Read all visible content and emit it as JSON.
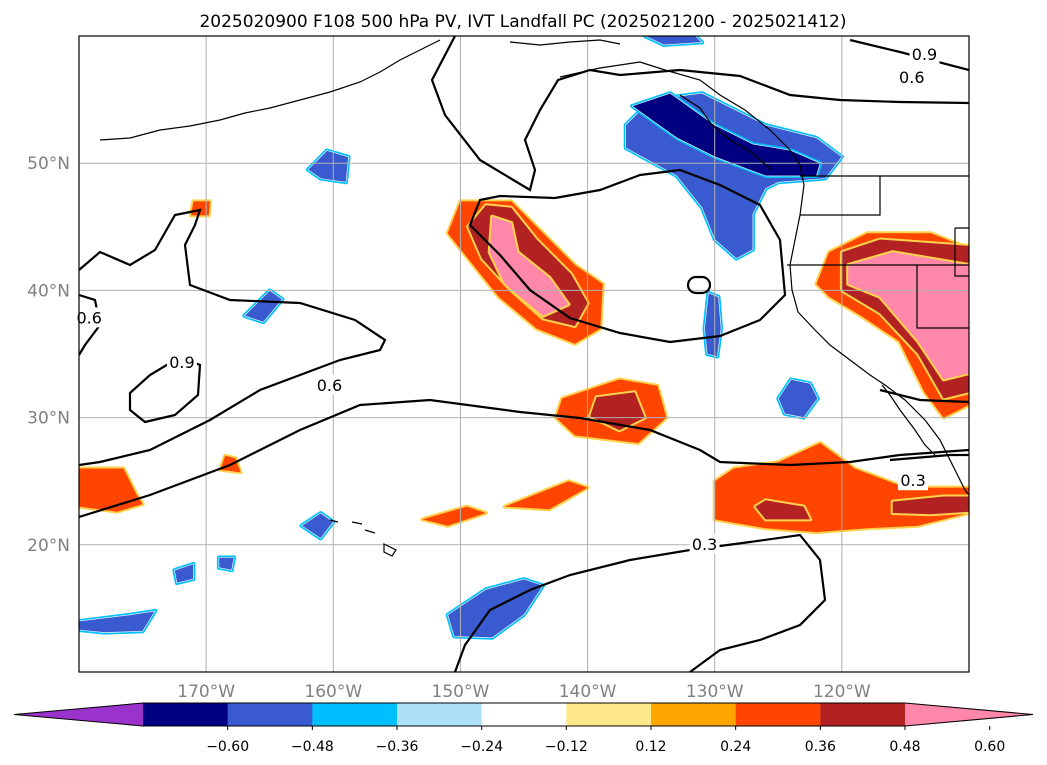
{
  "chart_data": {
    "type": "heatmap",
    "title": "2025020900 F108 500 hPa PV, IVT Landfall PC (2025021200 - 2025021412)",
    "xlabel": "",
    "ylabel": "",
    "xlim": [
      -180,
      -110
    ],
    "ylim": [
      10,
      60
    ],
    "grid": true,
    "x_ticks": [
      {
        "value": -170,
        "label": "170°W"
      },
      {
        "value": -160,
        "label": "160°W"
      },
      {
        "value": -150,
        "label": "150°W"
      },
      {
        "value": -140,
        "label": "140°W"
      },
      {
        "value": -130,
        "label": "130°W"
      },
      {
        "value": -120,
        "label": "120°W"
      }
    ],
    "y_ticks": [
      {
        "value": 20,
        "label": "20°N"
      },
      {
        "value": 30,
        "label": "30°N"
      },
      {
        "value": 40,
        "label": "40°N"
      },
      {
        "value": 50,
        "label": "50°N"
      }
    ],
    "colorbar": {
      "orientation": "horizontal",
      "extend": "both",
      "ticks": [
        "−0.60",
        "−0.48",
        "−0.36",
        "−0.24",
        "−0.12",
        "0.12",
        "0.24",
        "0.36",
        "0.48",
        "0.60"
      ],
      "colors": [
        "#9933cc",
        "#000080",
        "#3a5bd0",
        "#00bfff",
        "#aee0fa",
        "#ffffff",
        "#ffe88a",
        "#ffa500",
        "#ff4500",
        "#b22222",
        "#ff88aa"
      ]
    },
    "contour_labels": [
      {
        "text": "0.9",
        "lon": -113.5,
        "lat": 58.5
      },
      {
        "text": "0.6",
        "lon": -114.5,
        "lat": 56.7
      },
      {
        "text": "0.6",
        "lon": -179.2,
        "lat": 37.8
      },
      {
        "text": "0.9",
        "lon": -171.9,
        "lat": 34.3
      },
      {
        "text": "0.6",
        "lon": -160.3,
        "lat": 32.5
      },
      {
        "text": "0.3",
        "lon": -114.4,
        "lat": 25.0
      },
      {
        "text": "0.3",
        "lon": -130.8,
        "lat": 20.0
      }
    ],
    "filled_regions": [
      {
        "name": "pv-gulf-of-alaska-low",
        "value_class": -0.36,
        "polygon": [
          [
            -137,
            53
          ],
          [
            -135,
            55
          ],
          [
            -131,
            55.5
          ],
          [
            -126,
            53
          ],
          [
            -122,
            52
          ],
          [
            -120,
            50.5
          ],
          [
            -121.3,
            48.8
          ],
          [
            -125,
            48.5
          ],
          [
            -126,
            48
          ],
          [
            -127,
            46
          ],
          [
            -127,
            43.2
          ],
          [
            -128.3,
            42.5
          ],
          [
            -130,
            44
          ],
          [
            -131,
            46.5
          ],
          [
            -133,
            49
          ],
          [
            -137,
            51.2
          ]
        ]
      },
      {
        "name": "pv-gulf-of-alaska-core",
        "value_class": -0.48,
        "polygon": [
          [
            -136.5,
            54.5
          ],
          [
            -133.5,
            55.5
          ],
          [
            -130,
            53
          ],
          [
            -127,
            51.5
          ],
          [
            -124,
            51
          ],
          [
            -121.7,
            50
          ],
          [
            -122,
            49
          ],
          [
            -126,
            49
          ],
          [
            -130,
            50.5
          ],
          [
            -133,
            52
          ]
        ]
      },
      {
        "name": "pv-north-edge",
        "value_class": -0.36,
        "polygon": [
          [
            -135.5,
            60
          ],
          [
            -134,
            59.3
          ],
          [
            -131,
            59.5
          ],
          [
            -131.5,
            60
          ]
        ]
      },
      {
        "name": "pv-sliver-central",
        "value_class": -0.36,
        "polygon": [
          [
            -130.5,
            39.8
          ],
          [
            -129.7,
            39.5
          ],
          [
            -129.5,
            37
          ],
          [
            -129.8,
            34.8
          ],
          [
            -130.6,
            35
          ],
          [
            -130.8,
            37
          ]
        ]
      },
      {
        "name": "pv-socal-offshore",
        "value_class": -0.36,
        "polygon": [
          [
            -124,
            33
          ],
          [
            -122.5,
            32.7
          ],
          [
            -121.9,
            31.5
          ],
          [
            -123,
            30
          ],
          [
            -124.5,
            30.3
          ],
          [
            -125,
            31.5
          ]
        ]
      },
      {
        "name": "pv-west-blob-1",
        "value_class": -0.36,
        "polygon": [
          [
            -162,
            49.5
          ],
          [
            -160.5,
            51
          ],
          [
            -158.8,
            50.5
          ],
          [
            -159,
            48.5
          ],
          [
            -161,
            48.8
          ]
        ]
      },
      {
        "name": "pv-west-blob-2",
        "value_class": -0.36,
        "polygon": [
          [
            -167,
            38
          ],
          [
            -165,
            40
          ],
          [
            -164,
            39.3
          ],
          [
            -165.5,
            37.5
          ]
        ]
      },
      {
        "name": "pv-west-blob-3",
        "value_class": -0.36,
        "polygon": [
          [
            -162.5,
            21.5
          ],
          [
            -161,
            22.5
          ],
          [
            -160,
            21.8
          ],
          [
            -161,
            20.5
          ]
        ]
      },
      {
        "name": "pv-west-blob-4",
        "value_class": -0.36,
        "polygon": [
          [
            -172.5,
            18
          ],
          [
            -171,
            18.5
          ],
          [
            -171,
            17.3
          ],
          [
            -172.3,
            17
          ]
        ]
      },
      {
        "name": "pv-west-blob-5",
        "value_class": -0.36,
        "polygon": [
          [
            -169,
            19
          ],
          [
            -167.8,
            19
          ],
          [
            -168,
            18
          ],
          [
            -169,
            18.2
          ]
        ]
      },
      {
        "name": "pv-sw-strip",
        "value_class": -0.36,
        "polygon": [
          [
            -180,
            14
          ],
          [
            -176,
            14.5
          ],
          [
            -174,
            14.8
          ],
          [
            -175,
            13.2
          ],
          [
            -178,
            13.1
          ],
          [
            -180,
            13.3
          ]
        ]
      },
      {
        "name": "pv-south-blob",
        "value_class": -0.36,
        "polygon": [
          [
            -151,
            14.5
          ],
          [
            -148,
            16.5
          ],
          [
            -145,
            17.3
          ],
          [
            -143.5,
            16.8
          ],
          [
            -145,
            14.5
          ],
          [
            -147.5,
            12.7
          ],
          [
            -150.5,
            12.8
          ]
        ]
      },
      {
        "name": "ivt-central-outer",
        "value_class": 0.36,
        "polygon": [
          [
            -150,
            47
          ],
          [
            -146,
            47
          ],
          [
            -144,
            45
          ],
          [
            -141,
            42
          ],
          [
            -138.8,
            40.5
          ],
          [
            -139,
            37
          ],
          [
            -141,
            35.8
          ],
          [
            -144,
            37
          ],
          [
            -147,
            39.5
          ],
          [
            -149,
            42
          ],
          [
            -151,
            44.5
          ]
        ]
      },
      {
        "name": "ivt-central-mid",
        "value_class": 0.48,
        "polygon": [
          [
            -148,
            46.7
          ],
          [
            -146,
            46.5
          ],
          [
            -144,
            44
          ],
          [
            -141.3,
            41.3
          ],
          [
            -140,
            39
          ],
          [
            -141,
            37.2
          ],
          [
            -143.5,
            37.8
          ],
          [
            -146,
            40
          ],
          [
            -148.3,
            42.5
          ],
          [
            -149.4,
            45
          ]
        ]
      },
      {
        "name": "ivt-central-core",
        "value_class": 0.6,
        "polygon": [
          [
            -147.5,
            45.8
          ],
          [
            -146,
            45.3
          ],
          [
            -145.5,
            43
          ],
          [
            -143,
            41
          ],
          [
            -141.5,
            38.9
          ],
          [
            -143.5,
            38
          ],
          [
            -146.5,
            40.5
          ],
          [
            -147.7,
            43
          ]
        ]
      },
      {
        "name": "ivt-ca-outer",
        "value_class": 0.36,
        "polygon": [
          [
            -121,
            43
          ],
          [
            -118,
            44.5
          ],
          [
            -113,
            44.5
          ],
          [
            -110,
            43.3
          ],
          [
            -110,
            31
          ],
          [
            -112,
            30
          ],
          [
            -113.5,
            32
          ],
          [
            -115.5,
            36
          ],
          [
            -118.5,
            38
          ],
          [
            -121,
            39.5
          ],
          [
            -122,
            40.5
          ]
        ]
      },
      {
        "name": "ivt-ca-mid",
        "value_class": 0.48,
        "polygon": [
          [
            -120,
            43
          ],
          [
            -117,
            44
          ],
          [
            -110,
            43.5
          ],
          [
            -110,
            32
          ],
          [
            -112,
            31.5
          ],
          [
            -114,
            35
          ],
          [
            -117,
            38.2
          ],
          [
            -120,
            40
          ]
        ]
      },
      {
        "name": "ivt-ca-core",
        "value_class": 0.6,
        "polygon": [
          [
            -119.5,
            42
          ],
          [
            -116,
            43
          ],
          [
            -110,
            42
          ],
          [
            -110,
            33.5
          ],
          [
            -112,
            33
          ],
          [
            -114,
            36
          ],
          [
            -117,
            39.5
          ],
          [
            -119.5,
            40.5
          ]
        ]
      },
      {
        "name": "ivt-west-small",
        "value_class": 0.36,
        "polygon": [
          [
            -171,
            47
          ],
          [
            -169.7,
            47
          ],
          [
            -169.8,
            45.9
          ],
          [
            -171.2,
            45.9
          ]
        ]
      },
      {
        "name": "ivt-mid-ocean-outer",
        "value_class": 0.36,
        "polygon": [
          [
            -142,
            31.5
          ],
          [
            -137.5,
            33
          ],
          [
            -134.5,
            32.5
          ],
          [
            -133.8,
            30
          ],
          [
            -136,
            28
          ],
          [
            -141,
            28.6
          ],
          [
            -142.5,
            30
          ]
        ]
      },
      {
        "name": "ivt-mid-ocean-core",
        "value_class": 0.48,
        "polygon": [
          [
            -139.3,
            31.6
          ],
          [
            -136.3,
            32
          ],
          [
            -135.5,
            30
          ],
          [
            -137.5,
            29
          ],
          [
            -139.8,
            30.1
          ]
        ]
      },
      {
        "name": "ivt-west-edge",
        "value_class": 0.36,
        "polygon": [
          [
            -180,
            26
          ],
          [
            -176.5,
            26
          ],
          [
            -175.5,
            24
          ],
          [
            -175,
            23.2
          ],
          [
            -177,
            22.6
          ],
          [
            -180,
            23
          ]
        ]
      },
      {
        "name": "ivt-small-hi",
        "value_class": 0.36,
        "polygon": [
          [
            -168.5,
            27
          ],
          [
            -167.7,
            26.8
          ],
          [
            -167.3,
            25.7
          ],
          [
            -168.9,
            25.9
          ]
        ]
      },
      {
        "name": "ivt-streak-1",
        "value_class": 0.36,
        "polygon": [
          [
            -153,
            22
          ],
          [
            -149.5,
            23
          ],
          [
            -148,
            22.5
          ],
          [
            -151,
            21.5
          ]
        ]
      },
      {
        "name": "ivt-streak-2",
        "value_class": 0.36,
        "polygon": [
          [
            -146.5,
            23
          ],
          [
            -141.5,
            25
          ],
          [
            -140,
            24.5
          ],
          [
            -143,
            22.8
          ]
        ]
      },
      {
        "name": "ivt-subtropical-outer",
        "value_class": 0.36,
        "polygon": [
          [
            -130,
            25
          ],
          [
            -128.5,
            26
          ],
          [
            -125,
            26.5
          ],
          [
            -121.7,
            28
          ],
          [
            -119,
            26
          ],
          [
            -115,
            24.5
          ],
          [
            -110,
            24.5
          ],
          [
            -110,
            22.5
          ],
          [
            -114,
            21.5
          ],
          [
            -118,
            21.3
          ],
          [
            -122,
            21
          ],
          [
            -126,
            21.3
          ],
          [
            -130,
            22
          ]
        ]
      },
      {
        "name": "ivt-subtropical-core",
        "value_class": 0.48,
        "polygon": [
          [
            -126,
            23.5
          ],
          [
            -123,
            23
          ],
          [
            -122.5,
            22
          ],
          [
            -126,
            22
          ],
          [
            -126.8,
            23
          ]
        ]
      },
      {
        "name": "ivt-subtropical-core-e",
        "value_class": 0.48,
        "polygon": [
          [
            -116,
            23.4
          ],
          [
            -112,
            23.8
          ],
          [
            -110,
            23.8
          ],
          [
            -110,
            22.6
          ],
          [
            -113,
            22.4
          ],
          [
            -116,
            22.5
          ]
        ]
      }
    ]
  }
}
